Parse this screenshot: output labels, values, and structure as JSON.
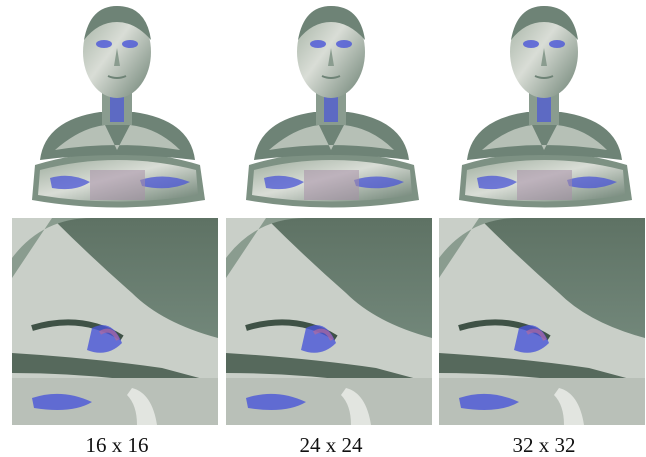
{
  "figure": {
    "panels": [
      {
        "caption": "16 x 16"
      },
      {
        "caption": "24 x 24"
      },
      {
        "caption": "32 x 32"
      }
    ]
  }
}
